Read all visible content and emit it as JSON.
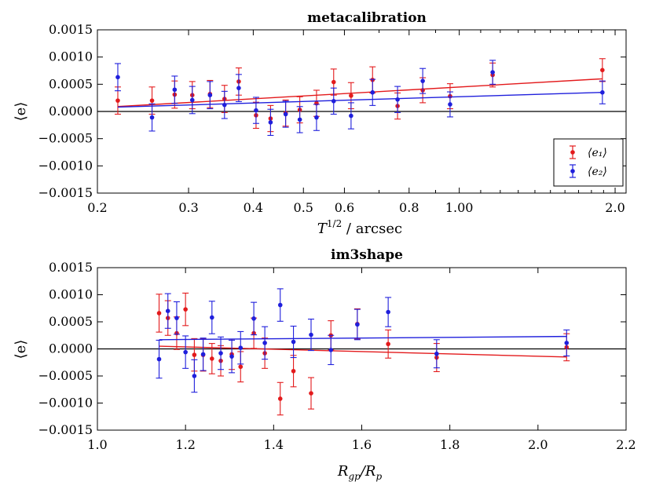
{
  "chart_data": [
    {
      "type": "scatter",
      "title": "metacalibration",
      "xlabel_main": "T",
      "xlabel_sup": "1/2",
      "xlabel_suffix": " / arcsec",
      "ylabel": "⟨e⟩",
      "xscale": "log",
      "xlim": [
        0.2,
        2.1
      ],
      "ylim": [
        -0.0015,
        0.0015
      ],
      "xticks": [
        {
          "v": 0.2,
          "label": "0.2"
        },
        {
          "v": 0.3,
          "label": "0.3"
        },
        {
          "v": 0.4,
          "label": "0.4"
        },
        {
          "v": 0.5,
          "label": "0.5"
        },
        {
          "v": 0.6,
          "label": "0.6"
        },
        {
          "v": 0.8,
          "label": "0.8"
        },
        {
          "v": 1.0,
          "label": "1.00"
        },
        {
          "v": 2.0,
          "label": "2.0"
        }
      ],
      "yticks": [
        {
          "v": 0.0015,
          "label": "0.0015"
        },
        {
          "v": 0.001,
          "label": "0.0010"
        },
        {
          "v": 0.0005,
          "label": "0.0005"
        },
        {
          "v": 0.0,
          "label": "0.0000"
        },
        {
          "v": -0.0005,
          "label": "−0.0005"
        },
        {
          "v": -0.001,
          "label": "−0.0010"
        },
        {
          "v": -0.0015,
          "label": "−0.0015"
        }
      ],
      "legend": {
        "position": "lower-right",
        "entries": [
          "⟨e₁⟩",
          "⟨e₂⟩"
        ]
      },
      "series": [
        {
          "name": "⟨e₁⟩",
          "color": "#e31a1c",
          "points": [
            {
              "x": 0.219,
              "y": 0.0002,
              "err": 0.00025
            },
            {
              "x": 0.255,
              "y": 0.0002,
              "err": 0.00025
            },
            {
              "x": 0.282,
              "y": 0.00031,
              "err": 0.00025
            },
            {
              "x": 0.305,
              "y": 0.0003,
              "err": 0.00025
            },
            {
              "x": 0.33,
              "y": 0.00032,
              "err": 0.00025
            },
            {
              "x": 0.352,
              "y": 0.00023,
              "err": 0.00025
            },
            {
              "x": 0.375,
              "y": 0.00055,
              "err": 0.00025
            },
            {
              "x": 0.405,
              "y": -7e-05,
              "err": 0.00024
            },
            {
              "x": 0.432,
              "y": -0.00013,
              "err": 0.00024
            },
            {
              "x": 0.462,
              "y": -3e-05,
              "err": 0.00024
            },
            {
              "x": 0.492,
              "y": 3e-05,
              "err": 0.00024
            },
            {
              "x": 0.53,
              "y": 0.00015,
              "err": 0.00024
            },
            {
              "x": 0.572,
              "y": 0.00054,
              "err": 0.00024
            },
            {
              "x": 0.618,
              "y": 0.00029,
              "err": 0.00024
            },
            {
              "x": 0.68,
              "y": 0.00058,
              "err": 0.00024
            },
            {
              "x": 0.76,
              "y": 0.0001,
              "err": 0.00024
            },
            {
              "x": 0.85,
              "y": 0.00039,
              "err": 0.00023
            },
            {
              "x": 0.96,
              "y": 0.00028,
              "err": 0.00023
            },
            {
              "x": 1.16,
              "y": 0.00067,
              "err": 0.00022
            },
            {
              "x": 1.89,
              "y": 0.00076,
              "err": 0.00021
            }
          ],
          "fit": [
            {
              "x": 0.219,
              "y": 9e-05
            },
            {
              "x": 1.89,
              "y": 0.0006
            }
          ]
        },
        {
          "name": "⟨e₂⟩",
          "color": "#1f1fdc",
          "points": [
            {
              "x": 0.219,
              "y": 0.00063,
              "err": 0.00025
            },
            {
              "x": 0.255,
              "y": -0.00011,
              "err": 0.00025
            },
            {
              "x": 0.282,
              "y": 0.0004,
              "err": 0.00025
            },
            {
              "x": 0.305,
              "y": 0.00021,
              "err": 0.00025
            },
            {
              "x": 0.33,
              "y": 0.0003,
              "err": 0.00025
            },
            {
              "x": 0.352,
              "y": 0.00012,
              "err": 0.00025
            },
            {
              "x": 0.375,
              "y": 0.00043,
              "err": 0.00025
            },
            {
              "x": 0.405,
              "y": 2e-05,
              "err": 0.00024
            },
            {
              "x": 0.432,
              "y": -0.0002,
              "err": 0.00024
            },
            {
              "x": 0.462,
              "y": -5e-05,
              "err": 0.00024
            },
            {
              "x": 0.492,
              "y": -0.00015,
              "err": 0.00024
            },
            {
              "x": 0.53,
              "y": -0.00011,
              "err": 0.00024
            },
            {
              "x": 0.572,
              "y": 0.00019,
              "err": 0.00024
            },
            {
              "x": 0.618,
              "y": -8e-05,
              "err": 0.00024
            },
            {
              "x": 0.68,
              "y": 0.00035,
              "err": 0.00024
            },
            {
              "x": 0.76,
              "y": 0.00022,
              "err": 0.00024
            },
            {
              "x": 0.85,
              "y": 0.00056,
              "err": 0.00023
            },
            {
              "x": 0.96,
              "y": 0.00013,
              "err": 0.00023
            },
            {
              "x": 1.16,
              "y": 0.00072,
              "err": 0.00022
            },
            {
              "x": 1.89,
              "y": 0.00035,
              "err": 0.00021
            }
          ],
          "fit": [
            {
              "x": 0.219,
              "y": 8e-05
            },
            {
              "x": 1.89,
              "y": 0.00035
            }
          ]
        }
      ]
    },
    {
      "type": "scatter",
      "title": "im3shape",
      "xlabel_main": "R",
      "xlabel_sub1": "gp",
      "xlabel_mid": "/R",
      "xlabel_sub2": "p",
      "ylabel": "⟨e⟩",
      "xscale": "linear",
      "xlim": [
        1.0,
        2.2
      ],
      "ylim": [
        -0.0015,
        0.0015
      ],
      "xticks": [
        {
          "v": 1.0,
          "label": "1.0"
        },
        {
          "v": 1.2,
          "label": "1.2"
        },
        {
          "v": 1.4,
          "label": "1.4"
        },
        {
          "v": 1.6,
          "label": "1.6"
        },
        {
          "v": 1.8,
          "label": "1.8"
        },
        {
          "v": 2.0,
          "label": "2.0"
        },
        {
          "v": 2.2,
          "label": "2.2"
        }
      ],
      "yticks": [
        {
          "v": 0.0015,
          "label": "0.0015"
        },
        {
          "v": 0.001,
          "label": "0.0010"
        },
        {
          "v": 0.0005,
          "label": "0.0005"
        },
        {
          "v": 0.0,
          "label": "0.0000"
        },
        {
          "v": -0.0005,
          "label": "−0.0005"
        },
        {
          "v": -0.001,
          "label": "−0.0010"
        },
        {
          "v": -0.0015,
          "label": "−0.0015"
        }
      ],
      "series": [
        {
          "name": "⟨e₁⟩",
          "color": "#e31a1c",
          "points": [
            {
              "x": 1.14,
              "y": 0.00066,
              "err": 0.00035
            },
            {
              "x": 1.16,
              "y": 0.00057,
              "err": 0.00032
            },
            {
              "x": 1.18,
              "y": 0.00029,
              "err": 0.0003
            },
            {
              "x": 1.2,
              "y": 0.00073,
              "err": 0.0003
            },
            {
              "x": 1.22,
              "y": -0.00011,
              "err": 0.0003
            },
            {
              "x": 1.24,
              "y": -0.00011,
              "err": 0.0003
            },
            {
              "x": 1.26,
              "y": -0.00018,
              "err": 0.00028
            },
            {
              "x": 1.28,
              "y": -0.00022,
              "err": 0.00028
            },
            {
              "x": 1.305,
              "y": -0.0001,
              "err": 0.00028
            },
            {
              "x": 1.325,
              "y": -0.00033,
              "err": 0.00028
            },
            {
              "x": 1.355,
              "y": 0.00029,
              "err": 0.00028
            },
            {
              "x": 1.38,
              "y": -8e-05,
              "err": 0.00028
            },
            {
              "x": 1.415,
              "y": -0.00092,
              "err": 0.0003
            },
            {
              "x": 1.445,
              "y": -0.00041,
              "err": 0.00029
            },
            {
              "x": 1.485,
              "y": -0.00082,
              "err": 0.00029
            },
            {
              "x": 1.53,
              "y": 0.00025,
              "err": 0.00027
            },
            {
              "x": 1.59,
              "y": 0.00046,
              "err": 0.00028
            },
            {
              "x": 1.66,
              "y": 9e-05,
              "err": 0.00026
            },
            {
              "x": 1.77,
              "y": -0.00016,
              "err": 0.00026
            },
            {
              "x": 2.065,
              "y": 3e-05,
              "err": 0.00025
            }
          ],
          "fit": [
            {
              "x": 1.14,
              "y": 5e-05
            },
            {
              "x": 2.065,
              "y": -0.00015
            }
          ]
        },
        {
          "name": "⟨e₂⟩",
          "color": "#1f1fdc",
          "points": [
            {
              "x": 1.14,
              "y": -0.00019,
              "err": 0.00035
            },
            {
              "x": 1.16,
              "y": 0.0007,
              "err": 0.00032
            },
            {
              "x": 1.18,
              "y": 0.00057,
              "err": 0.0003
            },
            {
              "x": 1.2,
              "y": -6e-05,
              "err": 0.0003
            },
            {
              "x": 1.22,
              "y": -0.0005,
              "err": 0.0003
            },
            {
              "x": 1.24,
              "y": -0.0001,
              "err": 0.0003
            },
            {
              "x": 1.26,
              "y": 0.00058,
              "err": 0.0003
            },
            {
              "x": 1.28,
              "y": -8e-05,
              "err": 0.0003
            },
            {
              "x": 1.305,
              "y": -0.00014,
              "err": 0.0003
            },
            {
              "x": 1.325,
              "y": 2e-05,
              "err": 0.0003
            },
            {
              "x": 1.355,
              "y": 0.00056,
              "err": 0.0003
            },
            {
              "x": 1.38,
              "y": 0.00011,
              "err": 0.0003
            },
            {
              "x": 1.415,
              "y": 0.00081,
              "err": 0.0003
            },
            {
              "x": 1.445,
              "y": 0.00013,
              "err": 0.00029
            },
            {
              "x": 1.485,
              "y": 0.00026,
              "err": 0.00029
            },
            {
              "x": 1.53,
              "y": -2e-05,
              "err": 0.00027
            },
            {
              "x": 1.59,
              "y": 0.00045,
              "err": 0.00028
            },
            {
              "x": 1.66,
              "y": 0.00068,
              "err": 0.00027
            },
            {
              "x": 1.77,
              "y": -9e-05,
              "err": 0.00026
            },
            {
              "x": 2.065,
              "y": 0.00011,
              "err": 0.00024
            }
          ],
          "fit": [
            {
              "x": 1.14,
              "y": 0.00017
            },
            {
              "x": 2.065,
              "y": 0.00023
            }
          ]
        }
      ]
    }
  ]
}
